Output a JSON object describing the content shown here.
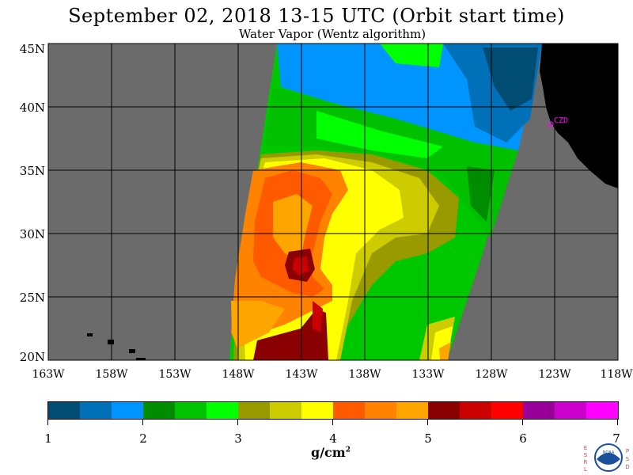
{
  "title": "September 02, 2018  13-15 UTC  (Orbit start time)",
  "subtitle": "Water Vapor (Wentz algorithm)",
  "map": {
    "lat_labels": [
      "45N",
      "40N",
      "35N",
      "30N",
      "25N",
      "20N"
    ],
    "lon_labels": [
      "163W",
      "158W",
      "153W",
      "148W",
      "143W",
      "138W",
      "133W",
      "128W",
      "123W",
      "118W"
    ],
    "station_label": "CZD",
    "colors": {
      "no_data": "#6b6b6b",
      "land": "#000000",
      "station": "#ff00ff"
    }
  },
  "colorbar": {
    "colors": [
      "#004c73",
      "#0070b8",
      "#0094ff",
      "#008c00",
      "#00c200",
      "#00ff00",
      "#999900",
      "#cccc00",
      "#ffff00",
      "#ff5a00",
      "#ff8200",
      "#ffa500",
      "#8b0000",
      "#cc0000",
      "#ff0000",
      "#990099",
      "#cc00cc",
      "#ff00ff"
    ],
    "tick_labels": [
      "1",
      "2",
      "3",
      "4",
      "5",
      "6",
      "7"
    ],
    "units": "g/cm",
    "units_sup": "2"
  },
  "logo": {
    "left_letters": "ESRL",
    "right_letters": "PSD",
    "emblem_text": "NOAA"
  }
}
